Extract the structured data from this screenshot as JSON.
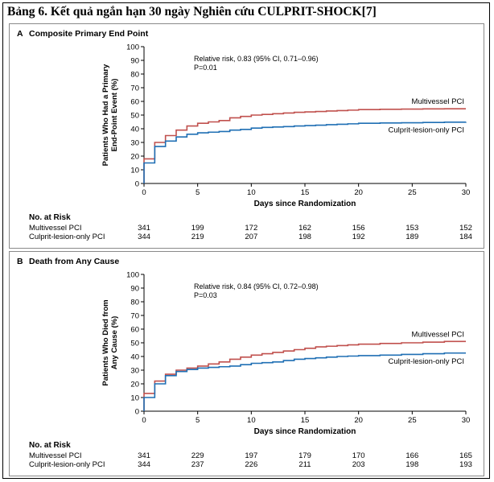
{
  "caption": "Bảng 6. Kết quả ngắn hạn 30 ngày Nghiên cứu CULPRIT-SHOCK[7]",
  "colors": {
    "multivessel": "#c0504d",
    "culprit": "#1f6fb4",
    "axis": "#000000"
  },
  "chart_data": [
    {
      "type": "line",
      "panel_letter": "A",
      "title": "Composite Primary End Point",
      "xlabel": "Days since Randomization",
      "ylabel_lines": [
        "Patients Who Had a Primary",
        "End-Point Event (%)"
      ],
      "xlim": [
        0,
        30
      ],
      "ylim": [
        0,
        100
      ],
      "xticks": [
        0,
        5,
        10,
        15,
        20,
        25,
        30
      ],
      "yticks": [
        0,
        10,
        20,
        30,
        40,
        50,
        60,
        70,
        80,
        90,
        100
      ],
      "annotation": [
        "Relative risk, 0.83 (95% CI, 0.71–0.96)",
        "P=0.01"
      ],
      "series": [
        {
          "name": "Multivessel PCI",
          "color": "#c0504d",
          "x": [
            0,
            1,
            2,
            3,
            4,
            5,
            6,
            7,
            8,
            9,
            10,
            11,
            12,
            13,
            14,
            15,
            16,
            17,
            18,
            19,
            20,
            22,
            24,
            26,
            28,
            30
          ],
          "y": [
            18,
            30,
            35,
            39,
            42,
            44,
            45,
            46,
            48,
            49,
            50,
            50.5,
            51,
            51.5,
            52,
            52.3,
            52.6,
            53,
            53.3,
            53.6,
            54,
            54.2,
            54.4,
            54.5,
            54.6,
            54.6
          ]
        },
        {
          "name": "Culprit-lesion-only PCI",
          "color": "#1f6fb4",
          "x": [
            0,
            1,
            2,
            3,
            4,
            5,
            6,
            7,
            8,
            9,
            10,
            11,
            12,
            13,
            14,
            15,
            16,
            17,
            18,
            19,
            20,
            22,
            24,
            26,
            28,
            30
          ],
          "y": [
            15,
            27,
            31,
            34,
            36,
            37,
            37.5,
            38,
            39,
            39.5,
            40.5,
            41,
            41.3,
            41.6,
            42,
            42.3,
            42.6,
            43,
            43.3,
            43.6,
            44,
            44.2,
            44.4,
            44.6,
            44.8,
            45
          ]
        }
      ],
      "risk_table": {
        "title": "No. at Risk",
        "rows": [
          {
            "label": "Multivessel PCI",
            "values": [
              "341",
              "199",
              "172",
              "162",
              "156",
              "153",
              "152"
            ]
          },
          {
            "label": "Culprit-lesion-only PCI",
            "values": [
              "344",
              "219",
              "207",
              "198",
              "192",
              "189",
              "184"
            ]
          }
        ]
      }
    },
    {
      "type": "line",
      "panel_letter": "B",
      "title": "Death from Any Cause",
      "xlabel": "Days since Randomization",
      "ylabel_lines": [
        "Patients Who Died from",
        "Any Cause (%)"
      ],
      "xlim": [
        0,
        30
      ],
      "ylim": [
        0,
        100
      ],
      "xticks": [
        0,
        5,
        10,
        15,
        20,
        25,
        30
      ],
      "yticks": [
        0,
        10,
        20,
        30,
        40,
        50,
        60,
        70,
        80,
        90,
        100
      ],
      "annotation": [
        "Relative risk, 0.84 (95% CI, 0.72–0.98)",
        "P=0.03"
      ],
      "series": [
        {
          "name": "Multivessel PCI",
          "color": "#c0504d",
          "x": [
            0,
            1,
            2,
            3,
            4,
            5,
            6,
            7,
            8,
            9,
            10,
            11,
            12,
            13,
            14,
            15,
            16,
            17,
            18,
            19,
            20,
            22,
            24,
            26,
            28,
            30
          ],
          "y": [
            13,
            22,
            27,
            30,
            31.5,
            33,
            34.5,
            36,
            38,
            39.5,
            41,
            42,
            43,
            44,
            45,
            46,
            47,
            47.5,
            48,
            48.5,
            49,
            49.5,
            50,
            50.5,
            51,
            51
          ]
        },
        {
          "name": "Culprit-lesion-only PCI",
          "color": "#1f6fb4",
          "x": [
            0,
            1,
            2,
            3,
            4,
            5,
            6,
            7,
            8,
            9,
            10,
            11,
            12,
            13,
            14,
            15,
            16,
            17,
            18,
            19,
            20,
            22,
            24,
            26,
            28,
            30
          ],
          "y": [
            10,
            20,
            26,
            29,
            30.5,
            31.5,
            32,
            32.5,
            33,
            34,
            35,
            35.5,
            36,
            37,
            38,
            38.5,
            39,
            39.5,
            40,
            40.3,
            40.6,
            41,
            41.5,
            42,
            42.5,
            42.5
          ]
        }
      ],
      "risk_table": {
        "title": "No. at Risk",
        "rows": [
          {
            "label": "Multivessel PCI",
            "values": [
              "341",
              "229",
              "197",
              "179",
              "170",
              "166",
              "165"
            ]
          },
          {
            "label": "Culprit-lesion-only PCI",
            "values": [
              "344",
              "237",
              "226",
              "211",
              "203",
              "198",
              "193"
            ]
          }
        ]
      }
    }
  ]
}
